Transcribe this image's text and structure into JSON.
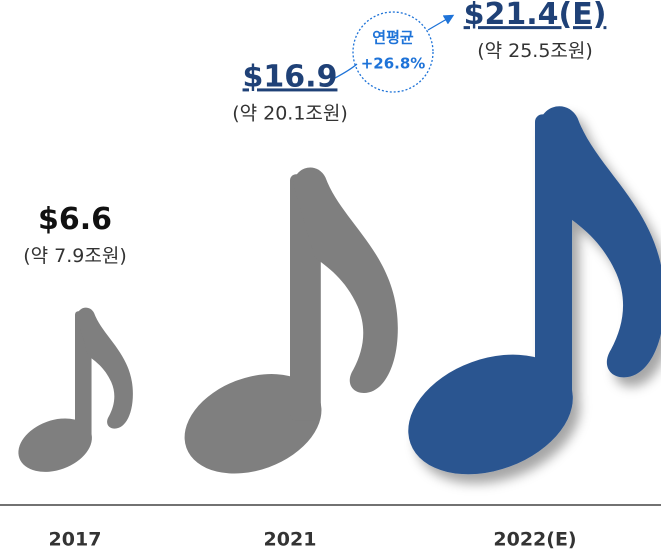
{
  "chart_data": {
    "type": "pictogram",
    "categories": [
      "2017",
      "2021",
      "2022(E)"
    ],
    "values": [
      6.6,
      16.9,
      21.4
    ],
    "value_labels": [
      "$6.6",
      "$16.9",
      "$21.4(E)"
    ],
    "sub_labels": [
      "(약 7.9조원)",
      "(약 20.1조원)",
      "(약 25.5조원)"
    ],
    "colors": [
      "#7f7f7f",
      "#7f7f7f",
      "#2b5590"
    ],
    "label_colors": [
      "#111111",
      "#1f4177",
      "#1f4177"
    ],
    "underline": [
      false,
      true,
      true
    ],
    "shadow": [
      false,
      false,
      true
    ],
    "annotation": {
      "label": "연평균",
      "text": "+26.8%"
    }
  }
}
